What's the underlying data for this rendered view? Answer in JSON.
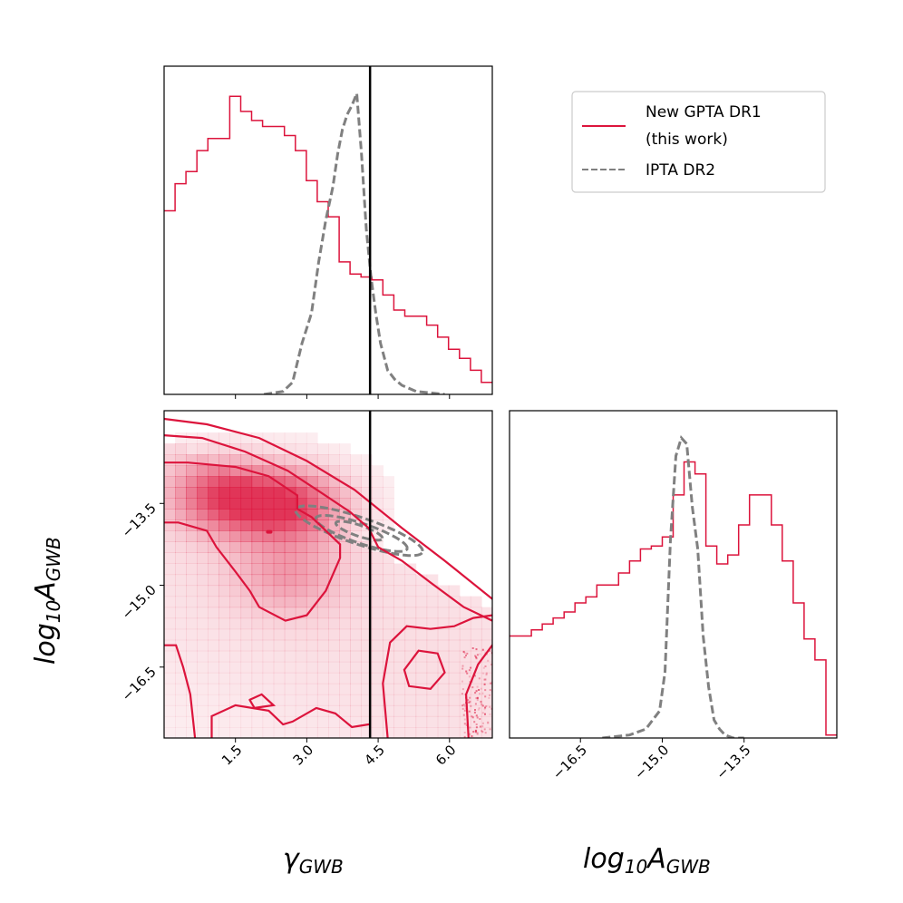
{
  "chart_data": {
    "type": "corner",
    "colors": {
      "new": "#dc143c",
      "ipta": "#808080",
      "truth": "#000000"
    },
    "legend": {
      "placement": "top-right",
      "entries": [
        {
          "line1": "New GPTA DR1",
          "line2": "(this work)",
          "style": "solid",
          "color": "#dc143c"
        },
        {
          "line1": "IPTA DR2",
          "line2": "",
          "style": "dashed",
          "color": "#808080"
        }
      ]
    },
    "truth": {
      "gamma": 4.33
    },
    "gamma": {
      "xlabel_main": "γ",
      "xlabel_sub": "GWB",
      "xlim": [
        0,
        6.9
      ],
      "ticks": [
        1.5,
        3.0,
        4.5,
        6.0
      ],
      "tick_labels": [
        "1.5",
        "3.0",
        "4.5",
        "6.0"
      ],
      "bin_edges": [
        0.0,
        0.23,
        0.46,
        0.69,
        0.92,
        1.15,
        1.38,
        1.61,
        1.84,
        2.07,
        2.3,
        2.53,
        2.76,
        2.99,
        3.22,
        3.45,
        3.68,
        3.91,
        4.14,
        4.37,
        4.6,
        4.83,
        5.06,
        5.29,
        5.52,
        5.75,
        5.98,
        6.21,
        6.44,
        6.67,
        6.9
      ],
      "new_density": [
        0.61,
        0.7,
        0.74,
        0.81,
        0.85,
        0.85,
        0.99,
        0.94,
        0.91,
        0.89,
        0.89,
        0.86,
        0.81,
        0.71,
        0.64,
        0.59,
        0.44,
        0.4,
        0.39,
        0.38,
        0.33,
        0.28,
        0.26,
        0.26,
        0.23,
        0.19,
        0.15,
        0.12,
        0.08,
        0.04
      ],
      "ipta_x": [
        2.1,
        2.5,
        2.7,
        2.9,
        3.1,
        3.25,
        3.4,
        3.55,
        3.65,
        3.75,
        3.85,
        3.95,
        4.05,
        4.15,
        4.25,
        4.35,
        4.45,
        4.55,
        4.7,
        4.85,
        5.0,
        5.3,
        5.6,
        5.9
      ],
      "ipta_density": [
        0.0,
        0.01,
        0.04,
        0.17,
        0.27,
        0.44,
        0.58,
        0.69,
        0.8,
        0.88,
        0.93,
        0.96,
        1.0,
        0.8,
        0.55,
        0.39,
        0.27,
        0.17,
        0.08,
        0.05,
        0.03,
        0.01,
        0.005,
        0.0
      ]
    },
    "logA": {
      "label_main": "log",
      "label_sub1": "10",
      "label_A": "A",
      "label_sub2": "GWB",
      "lim": [
        -17.8,
        -11.8
      ],
      "ticks": [
        -16.5,
        -15.0,
        -13.5
      ],
      "tick_labels": [
        "−16.5",
        "−15.0",
        "−13.5"
      ],
      "bin_edges": [
        -17.8,
        -17.6,
        -17.4,
        -17.2,
        -17.0,
        -16.8,
        -16.6,
        -16.4,
        -16.2,
        -16.0,
        -15.8,
        -15.6,
        -15.4,
        -15.2,
        -15.0,
        -14.8,
        -14.6,
        -14.4,
        -14.2,
        -14.0,
        -13.8,
        -13.6,
        -13.4,
        -13.2,
        -13.0,
        -12.8,
        -12.6,
        -12.4,
        -12.2,
        -12.0,
        -11.8
      ],
      "new_density": [
        0.34,
        0.34,
        0.36,
        0.38,
        0.4,
        0.42,
        0.45,
        0.47,
        0.51,
        0.51,
        0.55,
        0.59,
        0.63,
        0.64,
        0.67,
        0.81,
        0.92,
        0.88,
        0.64,
        0.58,
        0.61,
        0.71,
        0.81,
        0.81,
        0.71,
        0.59,
        0.45,
        0.33,
        0.26,
        0.01
      ],
      "ipta_x": [
        -16.1,
        -15.6,
        -15.3,
        -15.05,
        -14.95,
        -14.85,
        -14.75,
        -14.65,
        -14.55,
        -14.45,
        -14.35,
        -14.25,
        -14.15,
        -14.05,
        -13.95,
        -13.85,
        -13.7,
        -13.5
      ],
      "ipta_density": [
        0.0,
        0.01,
        0.03,
        0.09,
        0.22,
        0.66,
        0.94,
        1.0,
        0.98,
        0.77,
        0.63,
        0.34,
        0.17,
        0.06,
        0.03,
        0.01,
        0.0,
        0.0
      ]
    },
    "joint": {
      "heat_peaks": [
        {
          "gamma": 2.4,
          "logA": -13.5,
          "amp": 1.0,
          "sg": 0.9,
          "sa": 0.45
        },
        {
          "gamma": 1.1,
          "logA": -13.3,
          "amp": 0.55,
          "sg": 0.7,
          "sa": 0.45
        },
        {
          "gamma": 2.6,
          "logA": -14.8,
          "amp": 0.35,
          "sg": 0.8,
          "sa": 0.5
        }
      ],
      "new_contours": [
        {
          "name": "new-contour-inner",
          "points": [
            [
              0.0,
              -12.75
            ],
            [
              0.5,
              -12.75
            ],
            [
              1.5,
              -12.83
            ],
            [
              2.2,
              -13.0
            ],
            [
              2.8,
              -13.35
            ],
            [
              2.8,
              -13.6
            ],
            [
              3.1,
              -13.75
            ],
            [
              3.7,
              -14.25
            ],
            [
              3.7,
              -14.5
            ],
            [
              3.4,
              -15.1
            ],
            [
              3.0,
              -15.55
            ],
            [
              2.55,
              -15.65
            ],
            [
              2.0,
              -15.4
            ],
            [
              1.8,
              -15.1
            ],
            [
              1.5,
              -14.75
            ],
            [
              1.1,
              -14.3
            ],
            [
              0.9,
              -14.0
            ],
            [
              0.3,
              -13.85
            ],
            [
              0.0,
              -13.85
            ]
          ],
          "closed": false
        },
        {
          "name": "new-contour-outer-a",
          "points": [
            [
              0.0,
              -12.25
            ],
            [
              0.8,
              -12.3
            ],
            [
              1.7,
              -12.55
            ],
            [
              2.6,
              -12.9
            ],
            [
              3.3,
              -13.3
            ],
            [
              3.9,
              -13.65
            ],
            [
              4.3,
              -13.95
            ],
            [
              4.5,
              -14.3
            ],
            [
              5.0,
              -14.55
            ],
            [
              5.6,
              -14.95
            ],
            [
              6.3,
              -15.4
            ],
            [
              6.9,
              -15.65
            ]
          ],
          "closed": false
        },
        {
          "name": "new-contour-outer-b",
          "points": [
            [
              0.0,
              -11.95
            ],
            [
              0.9,
              -12.05
            ],
            [
              2.0,
              -12.3
            ],
            [
              3.0,
              -12.72
            ],
            [
              4.0,
              -13.25
            ],
            [
              5.0,
              -13.95
            ],
            [
              5.9,
              -14.55
            ],
            [
              6.9,
              -15.25
            ]
          ],
          "closed": false
        },
        {
          "name": "new-contour-lower-left",
          "points": [
            [
              0.0,
              -16.1
            ],
            [
              0.25,
              -16.1
            ],
            [
              0.4,
              -16.5
            ],
            [
              0.55,
              -17.0
            ],
            [
              0.65,
              -17.8
            ]
          ],
          "closed": false
        },
        {
          "name": "new-contour-lower-mid",
          "points": [
            [
              1.0,
              -17.8
            ],
            [
              1.0,
              -17.4
            ],
            [
              1.5,
              -17.2
            ],
            [
              2.2,
              -17.3
            ],
            [
              2.5,
              -17.55
            ],
            [
              2.7,
              -17.5
            ],
            [
              3.2,
              -17.25
            ],
            [
              3.6,
              -17.35
            ],
            [
              3.95,
              -17.6
            ],
            [
              4.3,
              -17.55
            ]
          ],
          "closed": false
        },
        {
          "name": "new-contour-bump",
          "points": [
            [
              1.8,
              -17.1
            ],
            [
              1.9,
              -17.25
            ],
            [
              2.3,
              -17.2
            ],
            [
              2.05,
              -17.0
            ],
            [
              1.8,
              -17.1
            ]
          ],
          "closed": false
        },
        {
          "name": "new-contour-lower-right",
          "points": [
            [
              4.7,
              -17.8
            ],
            [
              4.6,
              -16.8
            ],
            [
              4.75,
              -16.05
            ],
            [
              5.1,
              -15.75
            ],
            [
              5.6,
              -15.8
            ],
            [
              6.1,
              -15.75
            ],
            [
              6.5,
              -15.6
            ],
            [
              6.9,
              -15.55
            ]
          ],
          "closed": false
        },
        {
          "name": "new-contour-loop",
          "points": [
            [
              5.05,
              -16.55
            ],
            [
              5.35,
              -16.2
            ],
            [
              5.75,
              -16.25
            ],
            [
              5.9,
              -16.6
            ],
            [
              5.6,
              -16.9
            ],
            [
              5.15,
              -16.85
            ],
            [
              5.05,
              -16.55
            ]
          ],
          "closed": true
        },
        {
          "name": "new-contour-corner",
          "points": [
            [
              6.4,
              -17.8
            ],
            [
              6.35,
              -17.0
            ],
            [
              6.6,
              -16.45
            ],
            [
              6.9,
              -16.1
            ]
          ],
          "closed": false
        },
        {
          "name": "new-contour-island",
          "points": [
            [
              2.18,
              -14.02
            ],
            [
              2.24,
              -14.02
            ]
          ],
          "closed": false
        }
      ],
      "ipta_contours": [
        {
          "cg": 4.1,
          "ca": -14.0,
          "a": 1.5,
          "b": 0.27,
          "angle": -27,
          "name": "ipta-contour-outer"
        },
        {
          "cg": 4.15,
          "ca": -14.05,
          "a": 1.08,
          "b": 0.2,
          "angle": -27,
          "name": "ipta-contour-middle"
        },
        {
          "cg": 4.1,
          "ca": -14.0,
          "a": 0.55,
          "b": 0.11,
          "angle": -27,
          "name": "ipta-contour-inner"
        }
      ]
    }
  }
}
